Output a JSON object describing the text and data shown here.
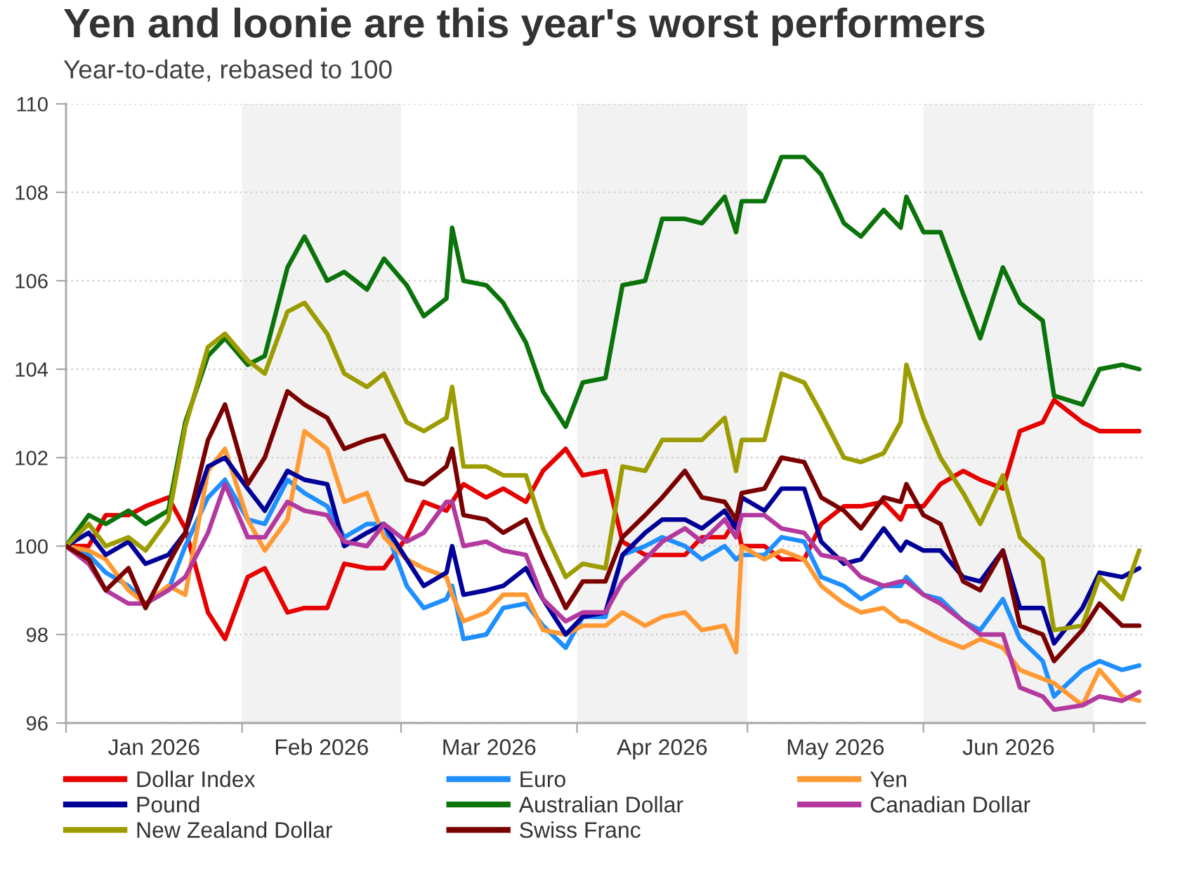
{
  "chart_data": {
    "type": "line",
    "title": "Yen and loonie are this year's worst performers",
    "subtitle": "Year-to-date, rebased to 100",
    "x": [
      "2026-01-01",
      "2026-01-05",
      "2026-01-08",
      "2026-01-12",
      "2026-01-15",
      "2026-01-19",
      "2026-01-22",
      "2026-01-26",
      "2026-01-29",
      "2026-02-02",
      "2026-02-05",
      "2026-02-09",
      "2026-02-12",
      "2026-02-16",
      "2026-02-19",
      "2026-02-23",
      "2026-02-26",
      "2026-03-02",
      "2026-03-05",
      "2026-03-09",
      "2026-03-10",
      "2026-03-12",
      "2026-03-16",
      "2026-03-19",
      "2026-03-23",
      "2026-03-26",
      "2026-03-30",
      "2026-04-02",
      "2026-04-06",
      "2026-04-09",
      "2026-04-13",
      "2026-04-16",
      "2026-04-20",
      "2026-04-23",
      "2026-04-27",
      "2026-04-29",
      "2026-04-30",
      "2026-05-04",
      "2026-05-07",
      "2026-05-11",
      "2026-05-14",
      "2026-05-18",
      "2026-05-21",
      "2026-05-25",
      "2026-05-28",
      "2026-05-29",
      "2026-06-01",
      "2026-06-04",
      "2026-06-08",
      "2026-06-11",
      "2026-06-15",
      "2026-06-18",
      "2026-06-22",
      "2026-06-24",
      "2026-06-29",
      "2026-07-02",
      "2026-07-06",
      "2026-07-09"
    ],
    "series": [
      {
        "name": "Dollar Index",
        "color": "#e60000",
        "values": [
          100.0,
          100.0,
          100.7,
          100.7,
          100.9,
          101.1,
          100.4,
          98.5,
          97.9,
          99.3,
          99.5,
          98.5,
          98.6,
          98.6,
          99.6,
          99.5,
          99.5,
          100.2,
          101.0,
          100.8,
          101.0,
          101.4,
          101.1,
          101.3,
          101.0,
          101.7,
          102.2,
          101.6,
          101.7,
          100.1,
          99.8,
          99.8,
          99.8,
          100.2,
          100.2,
          100.6,
          100.0,
          100.0,
          99.7,
          99.7,
          100.5,
          100.9,
          100.9,
          101.0,
          100.6,
          100.9,
          100.9,
          101.4,
          101.7,
          101.5,
          101.3,
          102.6,
          102.8,
          103.3,
          102.8,
          102.6,
          102.6,
          102.6
        ]
      },
      {
        "name": "Euro",
        "color": "#1f8fff",
        "values": [
          100.0,
          99.8,
          99.4,
          99.1,
          98.7,
          99.0,
          100.0,
          101.1,
          101.5,
          100.6,
          100.5,
          101.5,
          101.2,
          100.9,
          100.2,
          100.5,
          100.5,
          99.1,
          98.6,
          98.8,
          99.1,
          97.9,
          98.0,
          98.6,
          98.7,
          98.2,
          97.7,
          98.4,
          98.4,
          99.8,
          100.0,
          100.2,
          100.0,
          99.7,
          100.0,
          99.7,
          99.8,
          99.8,
          100.2,
          100.1,
          99.3,
          99.1,
          98.8,
          99.1,
          99.1,
          99.3,
          98.9,
          98.8,
          98.3,
          98.1,
          98.8,
          97.9,
          97.4,
          96.6,
          97.2,
          97.4,
          97.2,
          97.3
        ]
      },
      {
        "name": "Yen",
        "color": "#ff9933",
        "values": [
          100.0,
          99.9,
          99.7,
          99.0,
          98.7,
          99.1,
          98.9,
          101.7,
          102.2,
          100.6,
          99.9,
          100.6,
          102.6,
          102.2,
          101.0,
          101.2,
          100.2,
          99.7,
          99.5,
          99.3,
          98.9,
          98.3,
          98.5,
          98.9,
          98.9,
          98.1,
          98.0,
          98.2,
          98.2,
          98.5,
          98.2,
          98.4,
          98.5,
          98.1,
          98.2,
          97.6,
          100.0,
          99.7,
          99.9,
          99.7,
          99.1,
          98.7,
          98.5,
          98.6,
          98.3,
          98.3,
          98.1,
          97.9,
          97.7,
          97.9,
          97.7,
          97.2,
          97.0,
          96.9,
          96.4,
          97.2,
          96.6,
          96.5
        ]
      },
      {
        "name": "Pound",
        "color": "#000099",
        "values": [
          100.0,
          100.3,
          99.8,
          100.1,
          99.6,
          99.8,
          100.3,
          101.8,
          102.0,
          101.3,
          100.8,
          101.7,
          101.5,
          101.4,
          100.0,
          100.3,
          100.5,
          99.7,
          99.1,
          99.4,
          100.0,
          98.9,
          99.0,
          99.1,
          99.5,
          98.8,
          98.0,
          98.4,
          98.5,
          99.8,
          100.3,
          100.6,
          100.6,
          100.4,
          100.8,
          100.4,
          101.1,
          100.8,
          101.3,
          101.3,
          100.1,
          99.6,
          99.7,
          100.4,
          99.9,
          100.1,
          99.9,
          99.9,
          99.3,
          99.2,
          99.9,
          98.6,
          98.6,
          97.8,
          98.6,
          99.4,
          99.3,
          99.5
        ]
      },
      {
        "name": "Australian Dollar",
        "color": "#0a730a",
        "values": [
          100.0,
          100.7,
          100.5,
          100.8,
          100.5,
          100.8,
          102.8,
          104.3,
          104.7,
          104.1,
          104.3,
          106.3,
          107.0,
          106.0,
          106.2,
          105.8,
          106.5,
          105.9,
          105.2,
          105.6,
          107.2,
          106.0,
          105.9,
          105.5,
          104.6,
          103.5,
          102.7,
          103.7,
          103.8,
          105.9,
          106.0,
          107.4,
          107.4,
          107.3,
          107.9,
          107.1,
          107.8,
          107.8,
          108.8,
          108.8,
          108.4,
          107.3,
          107.0,
          107.6,
          107.2,
          107.9,
          107.1,
          107.1,
          105.7,
          104.7,
          106.3,
          105.5,
          105.1,
          103.4,
          103.2,
          104.0,
          104.1,
          104.0
        ]
      },
      {
        "name": "Canadian Dollar",
        "color": "#b4399f",
        "values": [
          100.0,
          99.6,
          99.0,
          98.7,
          98.7,
          99.0,
          99.3,
          100.3,
          101.4,
          100.2,
          100.2,
          101.0,
          100.8,
          100.7,
          100.1,
          100.0,
          100.5,
          100.1,
          100.3,
          101.0,
          101.0,
          100.0,
          100.1,
          99.9,
          99.8,
          98.8,
          98.3,
          98.5,
          98.5,
          99.2,
          99.7,
          100.1,
          100.4,
          100.1,
          100.6,
          100.2,
          100.7,
          100.7,
          100.4,
          100.3,
          99.8,
          99.7,
          99.3,
          99.1,
          99.2,
          99.2,
          98.9,
          98.7,
          98.3,
          98.0,
          98.0,
          96.8,
          96.6,
          96.3,
          96.4,
          96.6,
          96.5,
          96.7
        ]
      },
      {
        "name": "New Zealand Dollar",
        "color": "#9c9c00",
        "values": [
          100.0,
          100.5,
          100.0,
          100.2,
          99.9,
          100.6,
          102.7,
          104.5,
          104.8,
          104.2,
          103.9,
          105.3,
          105.5,
          104.8,
          103.9,
          103.6,
          103.9,
          102.8,
          102.6,
          102.9,
          103.6,
          101.8,
          101.8,
          101.6,
          101.6,
          100.4,
          99.3,
          99.6,
          99.5,
          101.8,
          101.7,
          102.4,
          102.4,
          102.4,
          102.9,
          101.7,
          102.4,
          102.4,
          103.9,
          103.7,
          103.0,
          102.0,
          101.9,
          102.1,
          102.8,
          104.1,
          102.9,
          102.0,
          101.2,
          100.5,
          101.6,
          100.2,
          99.7,
          98.1,
          98.2,
          99.3,
          98.8,
          99.9
        ]
      },
      {
        "name": "Swiss Franc",
        "color": "#7a0000",
        "values": [
          100.0,
          99.7,
          99.0,
          99.5,
          98.6,
          99.6,
          100.3,
          102.4,
          103.2,
          101.4,
          102.0,
          103.5,
          103.2,
          102.9,
          102.2,
          102.4,
          102.5,
          101.5,
          101.4,
          101.8,
          102.2,
          100.7,
          100.6,
          100.3,
          100.6,
          99.7,
          98.6,
          99.2,
          99.2,
          100.2,
          100.7,
          101.1,
          101.7,
          101.1,
          101.0,
          100.6,
          101.2,
          101.3,
          102.0,
          101.9,
          101.1,
          100.8,
          100.4,
          101.1,
          101.0,
          101.4,
          100.7,
          100.5,
          99.2,
          99.0,
          99.9,
          98.2,
          98.0,
          97.4,
          98.1,
          98.7,
          98.2,
          98.2
        ]
      }
    ],
    "xlim": [
      "2026-01-01",
      "2026-07-10"
    ],
    "xticks": [
      {
        "value": "2026-01-01",
        "label": null
      },
      {
        "value": "2026-01-16T12:00",
        "label": "Jan 2026"
      },
      {
        "value": "2026-02-01",
        "label": null
      },
      {
        "value": "2026-02-15",
        "label": "Feb 2026"
      },
      {
        "value": "2026-03-01",
        "label": null
      },
      {
        "value": "2026-03-16T12:00",
        "label": "Mar 2026"
      },
      {
        "value": "2026-04-01",
        "label": null
      },
      {
        "value": "2026-04-16",
        "label": "Apr 2026"
      },
      {
        "value": "2026-05-01",
        "label": null
      },
      {
        "value": "2026-05-16T12:00",
        "label": "May 2026"
      },
      {
        "value": "2026-06-01",
        "label": null
      },
      {
        "value": "2026-06-16",
        "label": "Jun 2026"
      },
      {
        "value": "2026-07-01",
        "label": null
      }
    ],
    "ylim": [
      96,
      110
    ],
    "yticks": [
      96,
      98,
      100,
      102,
      104,
      106,
      108,
      110
    ],
    "bands": [
      {
        "axis": "x",
        "from": "2026-02-01",
        "to": "2026-03-01",
        "color": "#f2f2f2"
      },
      {
        "axis": "x",
        "from": "2026-04-01",
        "to": "2026-05-01",
        "color": "#f2f2f2"
      },
      {
        "axis": "x",
        "from": "2026-06-01",
        "to": "2026-07-01",
        "color": "#f2f2f2"
      }
    ],
    "grid": "y",
    "legend": "bottom",
    "line_style": "solid"
  }
}
